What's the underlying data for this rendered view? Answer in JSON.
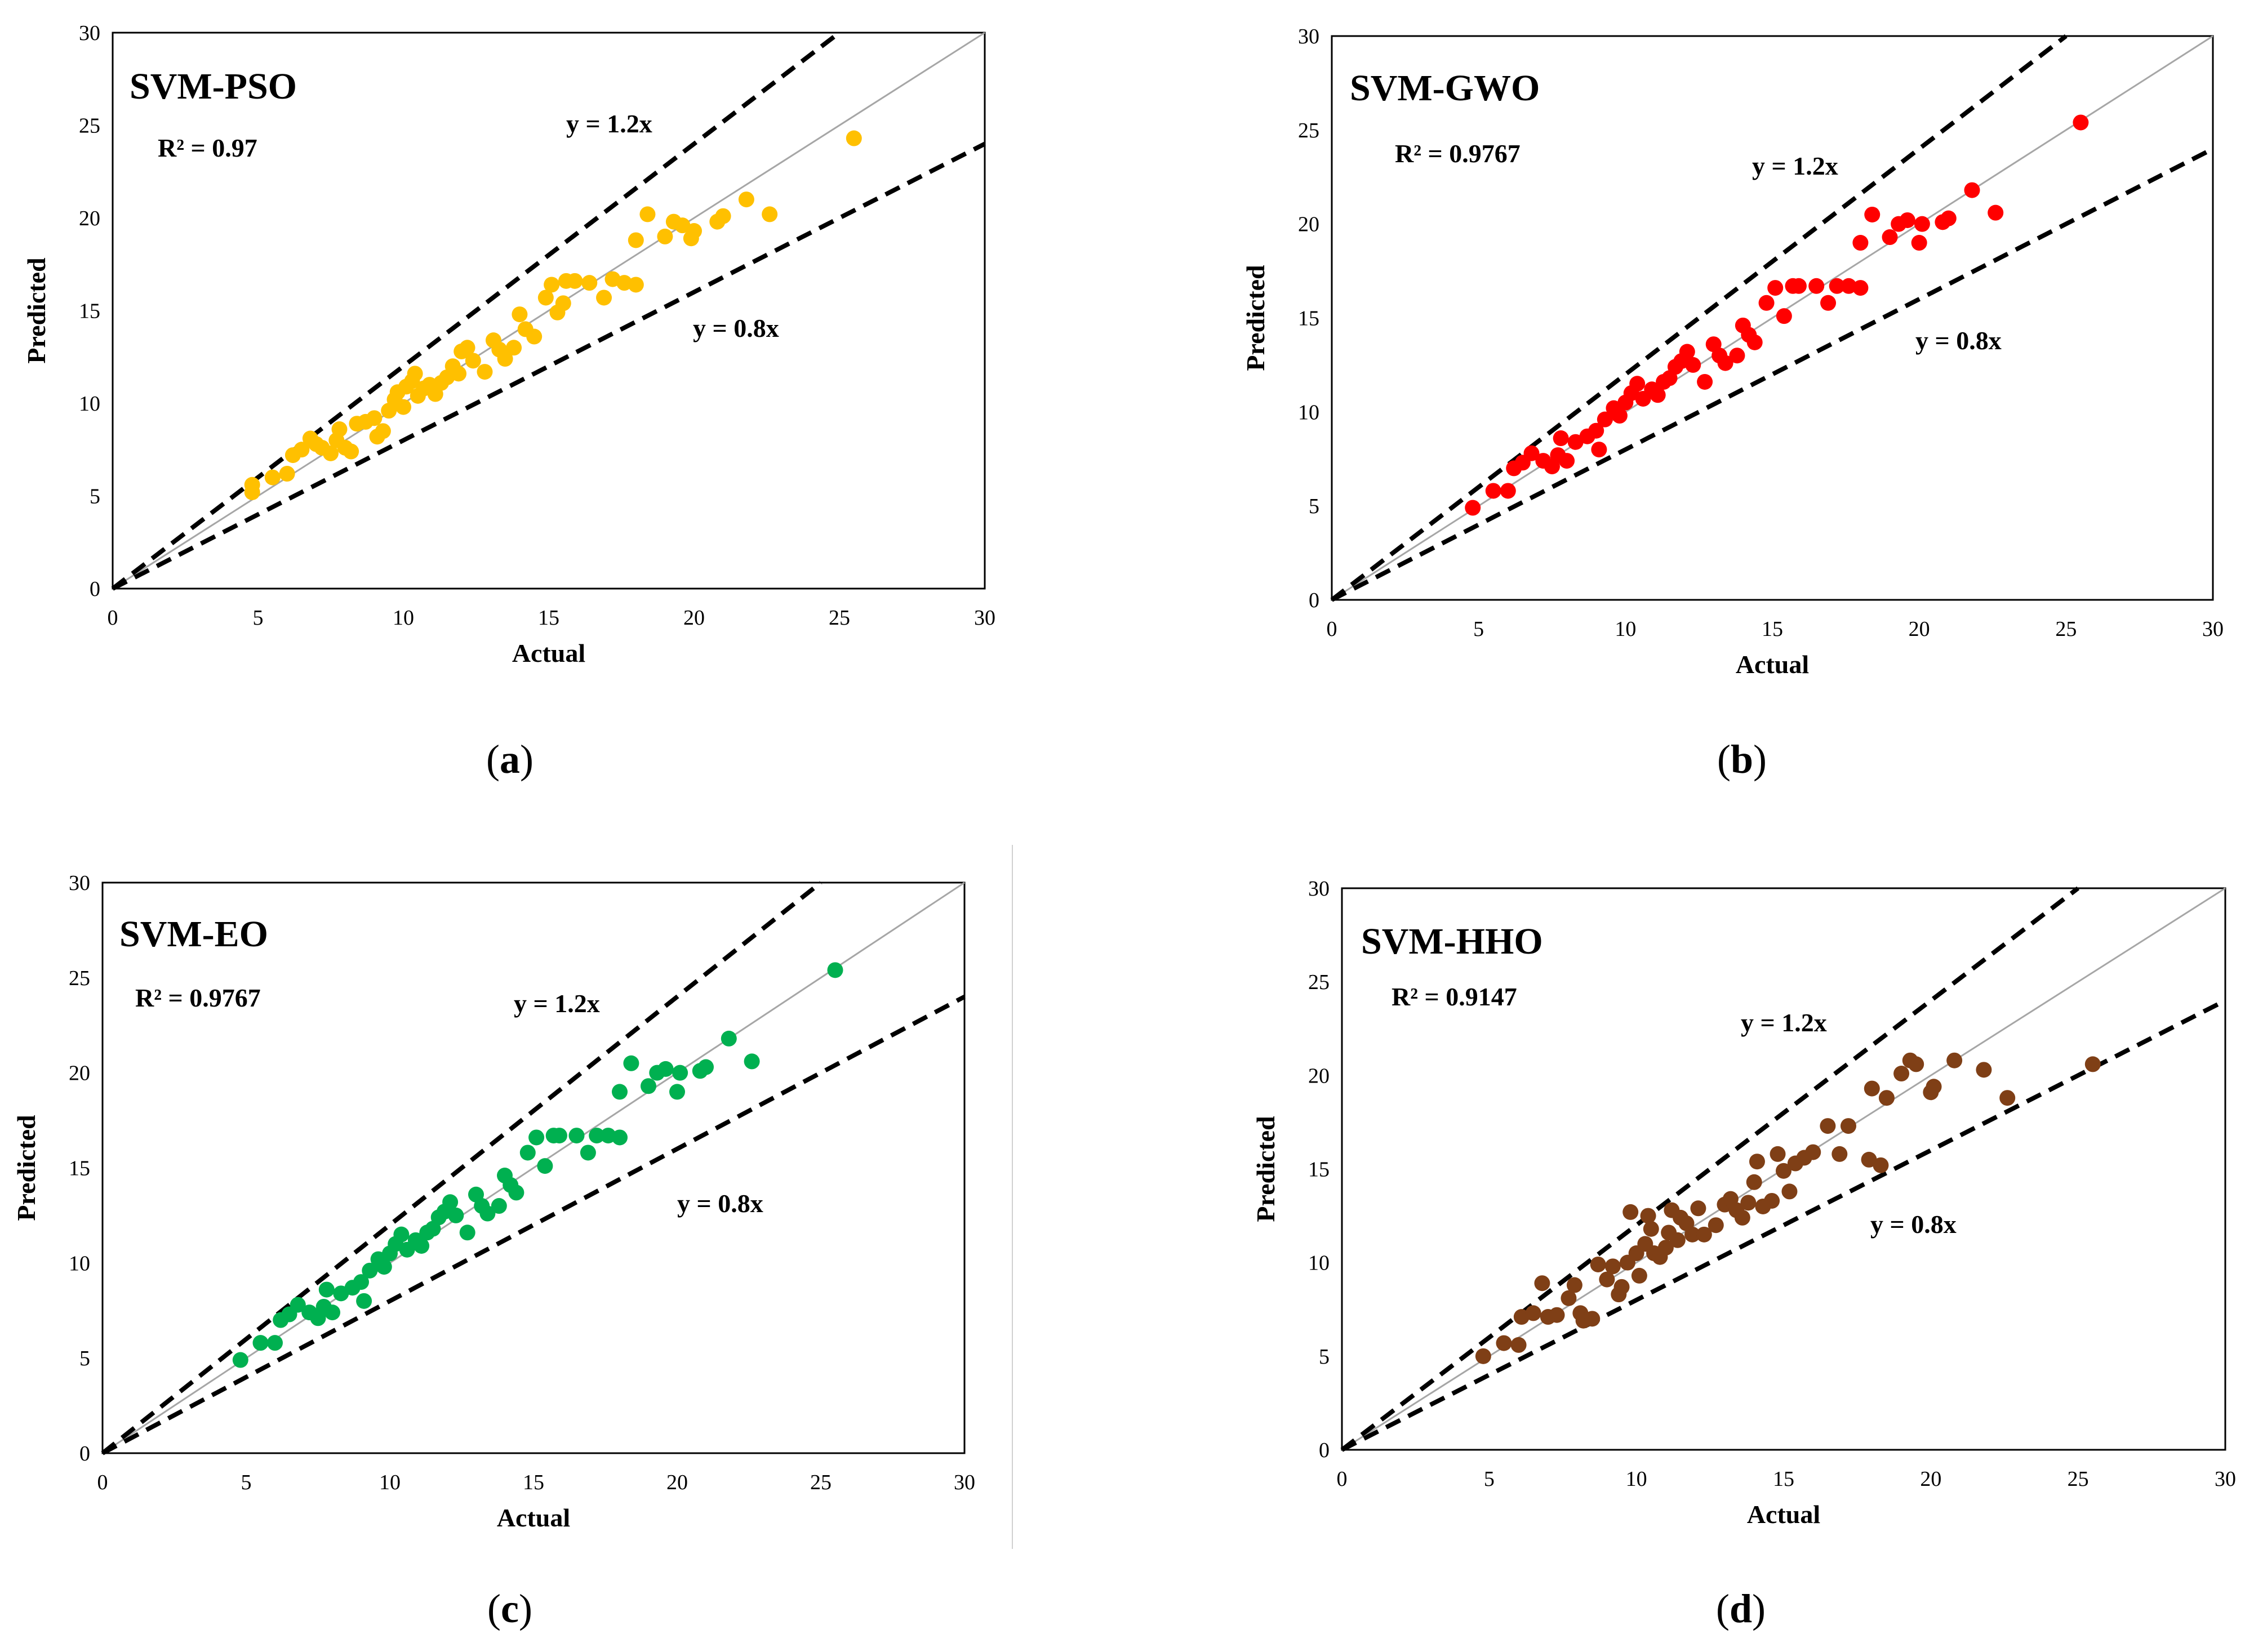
{
  "figure": {
    "divider_visible": true
  },
  "chart_data": [
    {
      "type": "scatter",
      "panel": "a",
      "caption_open": "(",
      "caption_letter": "a",
      "caption_close": ")",
      "title": "SVM-PSO",
      "r2_label": "R² = 0.97",
      "upper_label": "y = 1.2x",
      "lower_label": "y = 0.8x",
      "xlabel": "Actual",
      "ylabel": "Predicted",
      "xlim": [
        0,
        30
      ],
      "ylim": [
        0,
        30
      ],
      "ticks": [
        0,
        5,
        10,
        15,
        20,
        25,
        30
      ],
      "color": "#FFC000",
      "points": [
        [
          4.8,
          5.2
        ],
        [
          4.8,
          5.6
        ],
        [
          5.5,
          6.0
        ],
        [
          6.0,
          6.2
        ],
        [
          6.2,
          7.2
        ],
        [
          6.5,
          7.5
        ],
        [
          6.8,
          8.1
        ],
        [
          7.0,
          7.8
        ],
        [
          7.2,
          7.6
        ],
        [
          7.5,
          7.3
        ],
        [
          7.7,
          8.0
        ],
        [
          7.8,
          8.6
        ],
        [
          8.0,
          7.6
        ],
        [
          8.2,
          7.4
        ],
        [
          8.4,
          8.9
        ],
        [
          8.7,
          9.0
        ],
        [
          9.0,
          9.2
        ],
        [
          9.1,
          8.2
        ],
        [
          9.3,
          8.5
        ],
        [
          9.5,
          9.6
        ],
        [
          9.7,
          10.2
        ],
        [
          9.8,
          10.6
        ],
        [
          10.0,
          9.8
        ],
        [
          10.1,
          10.9
        ],
        [
          10.3,
          11.2
        ],
        [
          10.4,
          11.6
        ],
        [
          10.5,
          10.4
        ],
        [
          10.7,
          10.8
        ],
        [
          10.9,
          11.0
        ],
        [
          11.1,
          10.5
        ],
        [
          11.3,
          11.1
        ],
        [
          11.5,
          11.4
        ],
        [
          11.7,
          12.0
        ],
        [
          11.9,
          11.6
        ],
        [
          12.0,
          12.8
        ],
        [
          12.2,
          13.0
        ],
        [
          12.4,
          12.3
        ],
        [
          12.8,
          11.7
        ],
        [
          13.1,
          13.4
        ],
        [
          13.3,
          12.9
        ],
        [
          13.5,
          12.4
        ],
        [
          13.8,
          13.0
        ],
        [
          14.0,
          14.8
        ],
        [
          14.2,
          14.0
        ],
        [
          14.5,
          13.6
        ],
        [
          14.9,
          15.7
        ],
        [
          15.1,
          16.4
        ],
        [
          15.3,
          14.9
        ],
        [
          15.5,
          15.4
        ],
        [
          15.6,
          16.6
        ],
        [
          15.9,
          16.6
        ],
        [
          16.4,
          16.5
        ],
        [
          16.9,
          15.7
        ],
        [
          17.2,
          16.7
        ],
        [
          17.6,
          16.5
        ],
        [
          18.0,
          16.4
        ],
        [
          18.0,
          18.8
        ],
        [
          18.4,
          20.2
        ],
        [
          19.0,
          19.0
        ],
        [
          19.3,
          19.8
        ],
        [
          19.6,
          19.6
        ],
        [
          19.9,
          18.9
        ],
        [
          20.0,
          19.3
        ],
        [
          20.8,
          19.8
        ],
        [
          21.0,
          20.1
        ],
        [
          21.8,
          21.0
        ],
        [
          22.6,
          20.2
        ],
        [
          25.5,
          24.3
        ]
      ]
    },
    {
      "type": "scatter",
      "panel": "b",
      "caption_open": "(",
      "caption_letter": "b",
      "caption_close": ")",
      "title": "SVM-GWO",
      "r2_label": "R² = 0.9767",
      "upper_label": "y = 1.2x",
      "lower_label": "y = 0.8x",
      "xlabel": "Actual",
      "ylabel": "Predicted",
      "xlim": [
        0,
        30
      ],
      "ylim": [
        0,
        30
      ],
      "ticks": [
        0,
        5,
        10,
        15,
        20,
        25,
        30
      ],
      "color": "#FF0000",
      "points": [
        [
          4.8,
          4.9
        ],
        [
          5.5,
          5.8
        ],
        [
          6.0,
          5.8
        ],
        [
          6.2,
          7.0
        ],
        [
          6.5,
          7.3
        ],
        [
          6.8,
          7.8
        ],
        [
          7.2,
          7.4
        ],
        [
          7.5,
          7.1
        ],
        [
          7.7,
          7.7
        ],
        [
          7.8,
          8.6
        ],
        [
          8.0,
          7.4
        ],
        [
          8.3,
          8.4
        ],
        [
          8.7,
          8.7
        ],
        [
          9.0,
          9.0
        ],
        [
          9.1,
          8.0
        ],
        [
          9.3,
          9.6
        ],
        [
          9.6,
          10.2
        ],
        [
          9.8,
          9.8
        ],
        [
          10.0,
          10.5
        ],
        [
          10.2,
          11.0
        ],
        [
          10.4,
          11.5
        ],
        [
          10.6,
          10.7
        ],
        [
          10.9,
          11.2
        ],
        [
          11.1,
          10.9
        ],
        [
          11.3,
          11.6
        ],
        [
          11.5,
          11.8
        ],
        [
          11.7,
          12.4
        ],
        [
          11.9,
          12.7
        ],
        [
          12.1,
          13.2
        ],
        [
          12.3,
          12.5
        ],
        [
          12.7,
          11.6
        ],
        [
          13.0,
          13.6
        ],
        [
          13.2,
          13.0
        ],
        [
          13.4,
          12.6
        ],
        [
          13.8,
          13.0
        ],
        [
          14.0,
          14.6
        ],
        [
          14.2,
          14.1
        ],
        [
          14.4,
          13.7
        ],
        [
          14.8,
          15.8
        ],
        [
          15.1,
          16.6
        ],
        [
          15.4,
          15.1
        ],
        [
          15.7,
          16.7
        ],
        [
          15.9,
          16.7
        ],
        [
          16.5,
          16.7
        ],
        [
          16.9,
          15.8
        ],
        [
          17.2,
          16.7
        ],
        [
          17.6,
          16.7
        ],
        [
          18.0,
          16.6
        ],
        [
          18.0,
          19.0
        ],
        [
          18.4,
          20.5
        ],
        [
          19.0,
          19.3
        ],
        [
          19.3,
          20.0
        ],
        [
          19.6,
          20.2
        ],
        [
          20.0,
          19.0
        ],
        [
          20.1,
          20.0
        ],
        [
          20.8,
          20.1
        ],
        [
          21.0,
          20.3
        ],
        [
          21.8,
          21.8
        ],
        [
          22.6,
          20.6
        ],
        [
          25.5,
          25.4
        ]
      ]
    },
    {
      "type": "scatter",
      "panel": "c",
      "caption_open": "(",
      "caption_letter": "c",
      "caption_close": ")",
      "title": "SVM-EO",
      "r2_label": "R² = 0.9767",
      "upper_label": "y = 1.2x",
      "lower_label": "y = 0.8x",
      "xlabel": "Actual",
      "ylabel": "Predicted",
      "xlim": [
        0,
        30
      ],
      "ylim": [
        0,
        30
      ],
      "ticks": [
        0,
        5,
        10,
        15,
        20,
        25,
        30
      ],
      "color": "#00B050",
      "points": [
        [
          4.8,
          4.9
        ],
        [
          5.5,
          5.8
        ],
        [
          6.0,
          5.8
        ],
        [
          6.2,
          7.0
        ],
        [
          6.5,
          7.3
        ],
        [
          6.8,
          7.8
        ],
        [
          7.2,
          7.4
        ],
        [
          7.5,
          7.1
        ],
        [
          7.7,
          7.7
        ],
        [
          7.8,
          8.6
        ],
        [
          8.0,
          7.4
        ],
        [
          8.3,
          8.4
        ],
        [
          8.7,
          8.7
        ],
        [
          9.0,
          9.0
        ],
        [
          9.1,
          8.0
        ],
        [
          9.3,
          9.6
        ],
        [
          9.6,
          10.2
        ],
        [
          9.8,
          9.8
        ],
        [
          10.0,
          10.5
        ],
        [
          10.2,
          11.0
        ],
        [
          10.4,
          11.5
        ],
        [
          10.6,
          10.7
        ],
        [
          10.9,
          11.2
        ],
        [
          11.1,
          10.9
        ],
        [
          11.3,
          11.6
        ],
        [
          11.5,
          11.8
        ],
        [
          11.7,
          12.4
        ],
        [
          11.9,
          12.7
        ],
        [
          12.1,
          13.2
        ],
        [
          12.3,
          12.5
        ],
        [
          12.7,
          11.6
        ],
        [
          13.0,
          13.6
        ],
        [
          13.2,
          13.0
        ],
        [
          13.4,
          12.6
        ],
        [
          13.8,
          13.0
        ],
        [
          14.0,
          14.6
        ],
        [
          14.2,
          14.1
        ],
        [
          14.4,
          13.7
        ],
        [
          14.8,
          15.8
        ],
        [
          15.1,
          16.6
        ],
        [
          15.4,
          15.1
        ],
        [
          15.7,
          16.7
        ],
        [
          15.9,
          16.7
        ],
        [
          16.5,
          16.7
        ],
        [
          16.9,
          15.8
        ],
        [
          17.2,
          16.7
        ],
        [
          17.6,
          16.7
        ],
        [
          18.0,
          16.6
        ],
        [
          18.0,
          19.0
        ],
        [
          18.4,
          20.5
        ],
        [
          19.0,
          19.3
        ],
        [
          19.3,
          20.0
        ],
        [
          19.6,
          20.2
        ],
        [
          20.0,
          19.0
        ],
        [
          20.1,
          20.0
        ],
        [
          20.8,
          20.1
        ],
        [
          21.0,
          20.3
        ],
        [
          21.8,
          21.8
        ],
        [
          22.6,
          20.6
        ],
        [
          25.5,
          25.4
        ]
      ]
    },
    {
      "type": "scatter",
      "panel": "d",
      "caption_open": "(",
      "caption_letter": "d",
      "caption_close": ")",
      "title": "SVM-HHO",
      "r2_label": "R² = 0.9147",
      "upper_label": "y = 1.2x",
      "lower_label": "y = 0.8x",
      "xlabel": "Actual",
      "ylabel": "Predicted",
      "xlim": [
        0,
        30
      ],
      "ylim": [
        0,
        30
      ],
      "ticks": [
        0,
        5,
        10,
        15,
        20,
        25,
        30
      ],
      "color": "#7F3F16",
      "points": [
        [
          4.8,
          5.0
        ],
        [
          5.5,
          5.7
        ],
        [
          6.0,
          5.6
        ],
        [
          6.1,
          7.1
        ],
        [
          6.5,
          7.3
        ],
        [
          6.8,
          8.9
        ],
        [
          7.0,
          7.1
        ],
        [
          7.3,
          7.2
        ],
        [
          7.7,
          8.1
        ],
        [
          7.9,
          8.8
        ],
        [
          8.1,
          7.3
        ],
        [
          8.2,
          6.9
        ],
        [
          8.5,
          7.0
        ],
        [
          8.7,
          9.9
        ],
        [
          9.0,
          9.1
        ],
        [
          9.2,
          9.8
        ],
        [
          9.4,
          8.3
        ],
        [
          9.5,
          8.7
        ],
        [
          9.7,
          10.0
        ],
        [
          9.8,
          12.7
        ],
        [
          10.0,
          10.5
        ],
        [
          10.1,
          9.3
        ],
        [
          10.3,
          11.0
        ],
        [
          10.4,
          12.5
        ],
        [
          10.5,
          11.8
        ],
        [
          10.6,
          10.5
        ],
        [
          10.8,
          10.3
        ],
        [
          11.0,
          10.8
        ],
        [
          11.1,
          11.6
        ],
        [
          11.2,
          12.8
        ],
        [
          11.4,
          11.2
        ],
        [
          11.5,
          12.4
        ],
        [
          11.7,
          12.1
        ],
        [
          11.9,
          11.5
        ],
        [
          12.1,
          12.9
        ],
        [
          12.3,
          11.5
        ],
        [
          12.7,
          12.0
        ],
        [
          13.0,
          13.1
        ],
        [
          13.2,
          13.4
        ],
        [
          13.4,
          12.8
        ],
        [
          13.6,
          12.4
        ],
        [
          13.8,
          13.2
        ],
        [
          14.0,
          14.3
        ],
        [
          14.1,
          15.4
        ],
        [
          14.3,
          13.0
        ],
        [
          14.6,
          13.3
        ],
        [
          14.8,
          15.8
        ],
        [
          15.0,
          14.9
        ],
        [
          15.2,
          13.8
        ],
        [
          15.4,
          15.3
        ],
        [
          15.7,
          15.6
        ],
        [
          16.0,
          15.9
        ],
        [
          16.5,
          17.3
        ],
        [
          16.9,
          15.8
        ],
        [
          17.2,
          17.3
        ],
        [
          17.9,
          15.5
        ],
        [
          18.0,
          19.3
        ],
        [
          18.3,
          15.2
        ],
        [
          18.5,
          18.8
        ],
        [
          19.0,
          20.1
        ],
        [
          19.3,
          20.8
        ],
        [
          19.5,
          20.6
        ],
        [
          20.0,
          19.1
        ],
        [
          20.1,
          19.4
        ],
        [
          20.8,
          20.8
        ],
        [
          21.8,
          20.3
        ],
        [
          22.6,
          18.8
        ],
        [
          25.5,
          20.6
        ]
      ]
    }
  ]
}
